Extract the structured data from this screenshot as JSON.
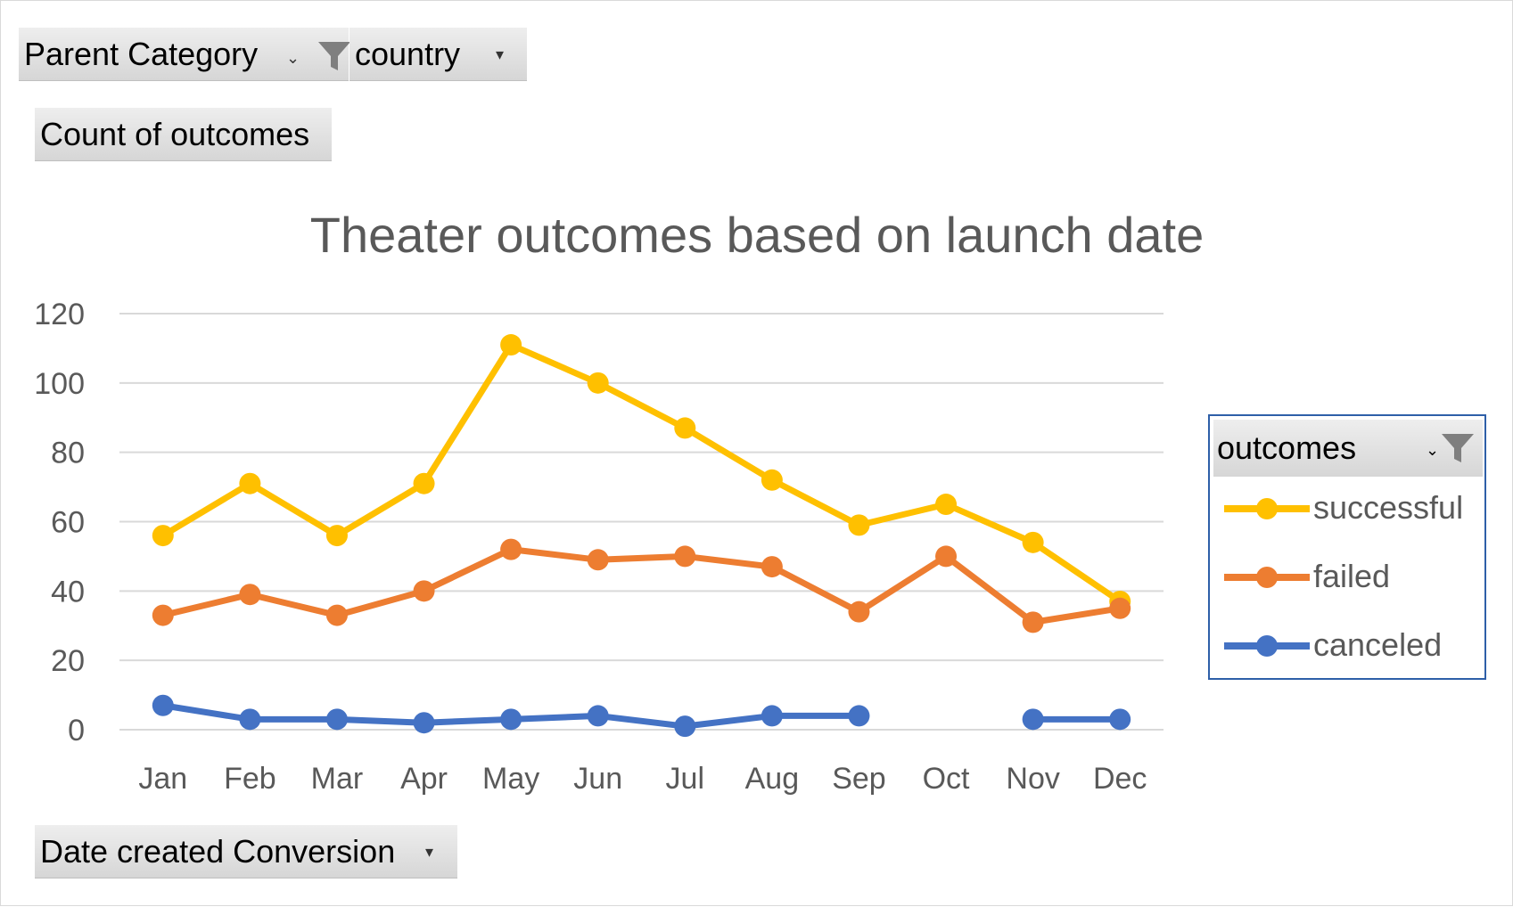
{
  "filters": {
    "parent_category": "Parent Category",
    "country": "country",
    "values_field": "Count of outcomes",
    "axis_field": "Date created Conversion"
  },
  "legend": {
    "header": "outcomes"
  },
  "icons": {
    "filter": "funnel-icon",
    "dropdown": "dropdown-arrow-icon"
  },
  "chart_data": {
    "type": "line",
    "title": "Theater outcomes based on launch date",
    "xlabel": "",
    "ylabel": "",
    "categories": [
      "Jan",
      "Feb",
      "Mar",
      "Apr",
      "May",
      "Jun",
      "Jul",
      "Aug",
      "Sep",
      "Oct",
      "Nov",
      "Dec"
    ],
    "ylim": [
      0,
      120
    ],
    "yticks": [
      0,
      20,
      40,
      60,
      80,
      100,
      120
    ],
    "grid": true,
    "legend_position": "right",
    "series": [
      {
        "name": "successful",
        "color": "#FFC000",
        "values": [
          56,
          71,
          56,
          71,
          111,
          100,
          87,
          72,
          59,
          65,
          54,
          37
        ]
      },
      {
        "name": "failed",
        "color": "#ED7D31",
        "values": [
          33,
          39,
          33,
          40,
          52,
          49,
          50,
          47,
          34,
          50,
          31,
          35
        ]
      },
      {
        "name": "canceled",
        "color": "#4472C4",
        "values": [
          7,
          3,
          3,
          2,
          3,
          4,
          1,
          4,
          4,
          null,
          3,
          3
        ]
      }
    ]
  }
}
